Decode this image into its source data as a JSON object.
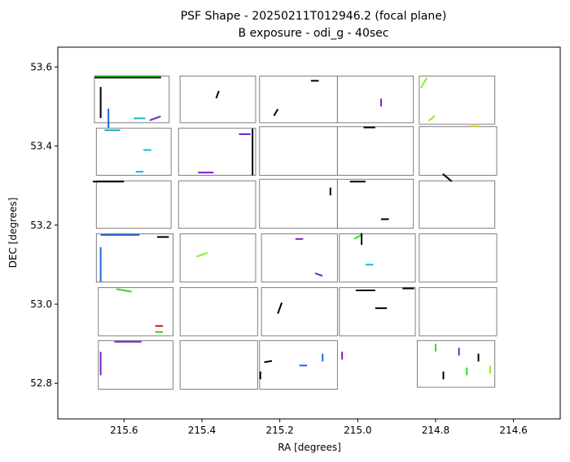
{
  "chart_data": {
    "type": "scatter",
    "title": "PSF Shape - 20250211T012946.2 (focal plane)",
    "subtitle": "B exposure - odi_g - 40sec",
    "xlabel": "RA [degrees]",
    "ylabel": "DEC [degrees]",
    "xlim": [
      215.77,
      214.48
    ],
    "ylim": [
      52.71,
      53.65
    ],
    "x_inverted": true,
    "xticks": [
      215.6,
      215.4,
      215.2,
      215.0,
      214.8,
      214.6
    ],
    "xtick_labels": [
      "215.6",
      "215.4",
      "215.2",
      "215.0",
      "214.8",
      "214.6"
    ],
    "yticks": [
      52.8,
      53.0,
      53.2,
      53.4,
      53.6
    ],
    "ytick_labels": [
      "52.8",
      "53.0",
      "53.2",
      "53.4",
      "53.6"
    ],
    "grid": false,
    "legend": "none",
    "colors": {
      "chip_outline": "#7f7f7f",
      "axes": "#000000"
    },
    "chips": [
      {
        "ra0": 215.676,
        "ra1": 215.484,
        "dec0": 53.459,
        "dec1": 53.577
      },
      {
        "ra0": 215.456,
        "ra1": 215.262,
        "dec0": 53.459,
        "dec1": 53.577
      },
      {
        "ra0": 215.252,
        "ra1": 215.052,
        "dec0": 53.459,
        "dec1": 53.577
      },
      {
        "ra0": 215.052,
        "ra1": 214.857,
        "dec0": 53.459,
        "dec1": 53.577
      },
      {
        "ra0": 214.842,
        "ra1": 214.648,
        "dec0": 53.455,
        "dec1": 53.577
      },
      {
        "ra0": 215.671,
        "ra1": 215.479,
        "dec0": 53.326,
        "dec1": 53.445
      },
      {
        "ra0": 215.46,
        "ra1": 215.262,
        "dec0": 53.326,
        "dec1": 53.445
      },
      {
        "ra0": 215.252,
        "ra1": 215.052,
        "dec0": 53.326,
        "dec1": 53.449
      },
      {
        "ra0": 215.052,
        "ra1": 214.857,
        "dec0": 53.326,
        "dec1": 53.449
      },
      {
        "ra0": 214.842,
        "ra1": 214.643,
        "dec0": 53.326,
        "dec1": 53.449
      },
      {
        "ra0": 215.671,
        "ra1": 215.479,
        "dec0": 53.192,
        "dec1": 53.312
      },
      {
        "ra0": 215.46,
        "ra1": 215.262,
        "dec0": 53.192,
        "dec1": 53.312
      },
      {
        "ra0": 215.252,
        "ra1": 215.052,
        "dec0": 53.192,
        "dec1": 53.316
      },
      {
        "ra0": 215.052,
        "ra1": 214.857,
        "dec0": 53.192,
        "dec1": 53.316
      },
      {
        "ra0": 214.842,
        "ra1": 214.648,
        "dec0": 53.192,
        "dec1": 53.312
      },
      {
        "ra0": 215.671,
        "ra1": 215.474,
        "dec0": 53.056,
        "dec1": 53.178
      },
      {
        "ra0": 215.456,
        "ra1": 215.262,
        "dec0": 53.056,
        "dec1": 53.178
      },
      {
        "ra0": 215.247,
        "ra1": 215.052,
        "dec0": 53.056,
        "dec1": 53.178
      },
      {
        "ra0": 215.047,
        "ra1": 214.852,
        "dec0": 53.056,
        "dec1": 53.178
      },
      {
        "ra0": 214.842,
        "ra1": 214.643,
        "dec0": 53.056,
        "dec1": 53.178
      },
      {
        "ra0": 215.666,
        "ra1": 215.474,
        "dec0": 52.92,
        "dec1": 53.042
      },
      {
        "ra0": 215.456,
        "ra1": 215.257,
        "dec0": 52.92,
        "dec1": 53.042
      },
      {
        "ra0": 215.247,
        "ra1": 215.052,
        "dec0": 52.92,
        "dec1": 53.042
      },
      {
        "ra0": 215.047,
        "ra1": 214.852,
        "dec0": 52.92,
        "dec1": 53.042
      },
      {
        "ra0": 214.842,
        "ra1": 214.643,
        "dec0": 52.92,
        "dec1": 53.042
      },
      {
        "ra0": 215.666,
        "ra1": 215.474,
        "dec0": 52.785,
        "dec1": 52.908
      },
      {
        "ra0": 215.456,
        "ra1": 215.257,
        "dec0": 52.785,
        "dec1": 52.908
      },
      {
        "ra0": 215.252,
        "ra1": 215.052,
        "dec0": 52.785,
        "dec1": 52.908
      },
      {
        "ra0": 214.847,
        "ra1": 214.648,
        "dec0": 52.79,
        "dec1": 52.908
      }
    ],
    "psf_segments": [
      {
        "ra": 215.59,
        "dec": 53.573,
        "len": 0.17,
        "angle": 0,
        "color": "#000000"
      },
      {
        "ra": 215.59,
        "dec": 53.577,
        "len": 0.17,
        "angle": 0,
        "color": "#33dd22"
      },
      {
        "ra": 215.66,
        "dec": 53.51,
        "len": 0.08,
        "angle": 90,
        "color": "#000000"
      },
      {
        "ra": 215.64,
        "dec": 53.47,
        "len": 0.05,
        "angle": 90,
        "color": "#2266dd"
      },
      {
        "ra": 215.56,
        "dec": 53.47,
        "len": 0.03,
        "angle": 0,
        "color": "#11bbcc"
      },
      {
        "ra": 215.52,
        "dec": 53.47,
        "len": 0.03,
        "angle": 20,
        "color": "#7722cc"
      },
      {
        "ra": 215.36,
        "dec": 53.53,
        "len": 0.02,
        "angle": 70,
        "color": "#000000"
      },
      {
        "ra": 215.11,
        "dec": 53.565,
        "len": 0.02,
        "angle": 0,
        "color": "#000000"
      },
      {
        "ra": 215.21,
        "dec": 53.485,
        "len": 0.02,
        "angle": 60,
        "color": "#000000"
      },
      {
        "ra": 214.94,
        "dec": 53.51,
        "len": 0.02,
        "angle": 90,
        "color": "#7722cc"
      },
      {
        "ra": 214.83,
        "dec": 53.56,
        "len": 0.03,
        "angle": 60,
        "color": "#88ee22"
      },
      {
        "ra": 214.81,
        "dec": 53.47,
        "len": 0.02,
        "angle": 40,
        "color": "#88ee22"
      },
      {
        "ra": 214.7,
        "dec": 53.45,
        "len": 0.02,
        "angle": 0,
        "color": "#ddcc11"
      },
      {
        "ra": 215.63,
        "dec": 53.44,
        "len": 0.04,
        "angle": 0,
        "color": "#11bbcc"
      },
      {
        "ra": 215.29,
        "dec": 53.43,
        "len": 0.03,
        "angle": 0,
        "color": "#7722cc"
      },
      {
        "ra": 215.27,
        "dec": 53.385,
        "len": 0.12,
        "angle": 90,
        "color": "#000000"
      },
      {
        "ra": 215.39,
        "dec": 53.333,
        "len": 0.04,
        "angle": 0,
        "color": "#7722cc"
      },
      {
        "ra": 215.56,
        "dec": 53.335,
        "len": 0.02,
        "angle": 0,
        "color": "#11bbcc"
      },
      {
        "ra": 215.54,
        "dec": 53.39,
        "len": 0.02,
        "angle": 0,
        "color": "#11bbcc"
      },
      {
        "ra": 214.97,
        "dec": 53.447,
        "len": 0.03,
        "angle": 0,
        "color": "#000000"
      },
      {
        "ra": 215.64,
        "dec": 53.31,
        "len": 0.08,
        "angle": 0,
        "color": "#000000"
      },
      {
        "ra": 215.0,
        "dec": 53.31,
        "len": 0.04,
        "angle": 0,
        "color": "#000000"
      },
      {
        "ra": 214.77,
        "dec": 53.32,
        "len": 0.03,
        "angle": -40,
        "color": "#000000"
      },
      {
        "ra": 215.07,
        "dec": 53.285,
        "len": 0.02,
        "angle": 90,
        "color": "#000000"
      },
      {
        "ra": 214.93,
        "dec": 53.215,
        "len": 0.02,
        "angle": 0,
        "color": "#000000"
      },
      {
        "ra": 215.66,
        "dec": 53.1,
        "len": 0.09,
        "angle": 90,
        "color": "#2266dd"
      },
      {
        "ra": 215.61,
        "dec": 53.175,
        "len": 0.1,
        "angle": 0,
        "color": "#2266dd"
      },
      {
        "ra": 215.5,
        "dec": 53.17,
        "len": 0.03,
        "angle": 0,
        "color": "#000000"
      },
      {
        "ra": 215.4,
        "dec": 53.125,
        "len": 0.03,
        "angle": 20,
        "color": "#88ee22"
      },
      {
        "ra": 215.15,
        "dec": 53.165,
        "len": 0.02,
        "angle": 0,
        "color": "#7722cc"
      },
      {
        "ra": 215.1,
        "dec": 53.075,
        "len": 0.02,
        "angle": -20,
        "color": "#7722cc"
      },
      {
        "ra": 215.0,
        "dec": 53.17,
        "len": 0.02,
        "angle": 30,
        "color": "#33dd22"
      },
      {
        "ra": 214.99,
        "dec": 53.165,
        "len": 0.03,
        "angle": 90,
        "color": "#000000"
      },
      {
        "ra": 214.97,
        "dec": 53.1,
        "len": 0.02,
        "angle": 0,
        "color": "#11bbcc"
      },
      {
        "ra": 215.6,
        "dec": 53.035,
        "len": 0.04,
        "angle": -10,
        "color": "#33dd22"
      },
      {
        "ra": 215.2,
        "dec": 52.99,
        "len": 0.03,
        "angle": 70,
        "color": "#000000"
      },
      {
        "ra": 214.98,
        "dec": 53.035,
        "len": 0.05,
        "angle": 0,
        "color": "#000000"
      },
      {
        "ra": 214.87,
        "dec": 53.04,
        "len": 0.03,
        "angle": 0,
        "color": "#000000"
      },
      {
        "ra": 214.94,
        "dec": 52.99,
        "len": 0.03,
        "angle": 0,
        "color": "#000000"
      },
      {
        "ra": 215.51,
        "dec": 52.945,
        "len": 0.02,
        "angle": 0,
        "color": "#dd1111"
      },
      {
        "ra": 215.51,
        "dec": 52.93,
        "len": 0.02,
        "angle": 0,
        "color": "#33dd22"
      },
      {
        "ra": 215.59,
        "dec": 52.905,
        "len": 0.07,
        "angle": 0,
        "color": "#7722cc"
      },
      {
        "ra": 215.66,
        "dec": 52.85,
        "len": 0.06,
        "angle": 90,
        "color": "#7722cc"
      },
      {
        "ra": 215.09,
        "dec": 52.865,
        "len": 0.02,
        "angle": 90,
        "color": "#2266dd"
      },
      {
        "ra": 215.14,
        "dec": 52.845,
        "len": 0.02,
        "angle": 0,
        "color": "#2266dd"
      },
      {
        "ra": 215.23,
        "dec": 52.855,
        "len": 0.02,
        "angle": 10,
        "color": "#000000"
      },
      {
        "ra": 215.25,
        "dec": 52.82,
        "len": 0.02,
        "angle": 90,
        "color": "#000000"
      },
      {
        "ra": 215.04,
        "dec": 52.87,
        "len": 0.02,
        "angle": 90,
        "color": "#7722cc"
      },
      {
        "ra": 214.8,
        "dec": 52.89,
        "len": 0.02,
        "angle": 90,
        "color": "#33dd22"
      },
      {
        "ra": 214.74,
        "dec": 52.88,
        "len": 0.02,
        "angle": 90,
        "color": "#7722cc"
      },
      {
        "ra": 214.69,
        "dec": 52.865,
        "len": 0.02,
        "angle": 90,
        "color": "#000000"
      },
      {
        "ra": 214.66,
        "dec": 52.835,
        "len": 0.02,
        "angle": 90,
        "color": "#88ee22"
      },
      {
        "ra": 214.72,
        "dec": 52.83,
        "len": 0.02,
        "angle": 90,
        "color": "#33dd22"
      },
      {
        "ra": 214.78,
        "dec": 52.82,
        "len": 0.02,
        "angle": 90,
        "color": "#000000"
      }
    ]
  }
}
